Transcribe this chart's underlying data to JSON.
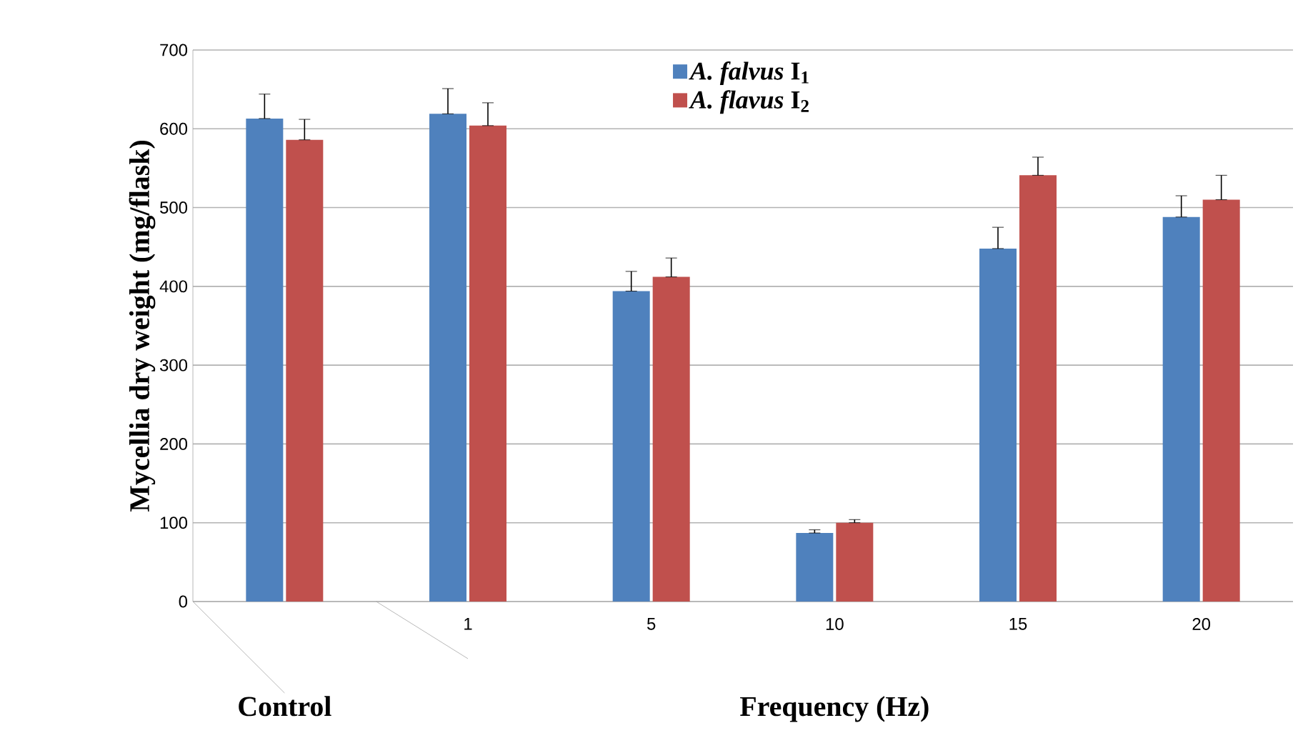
{
  "chart_data": {
    "type": "bar",
    "xlabel": "Frequency (Hz)",
    "ylabel": "Mycellia dry weight (mg/flask)",
    "categories": [
      null,
      "1",
      "5",
      "10",
      "15",
      "20"
    ],
    "annotations": [
      "Control"
    ],
    "series": [
      {
        "name": "*A. falvus* I$_{1}$",
        "color": "#4f81bd",
        "values": [
          613,
          619,
          394,
          87,
          448,
          488
        ],
        "errors": [
          [
            613,
            644
          ],
          [
            619,
            651
          ],
          [
            394,
            419
          ],
          [
            87,
            91
          ],
          [
            448,
            475
          ],
          [
            488,
            515
          ]
        ]
      },
      {
        "name": "*A. flavus* I$_{2}$",
        "color": "#c0504d",
        "values": [
          586,
          604,
          412,
          100,
          541,
          510
        ],
        "errors": [
          [
            586,
            612
          ],
          [
            604,
            633
          ],
          [
            412,
            436
          ],
          [
            100,
            104
          ],
          [
            541,
            564
          ],
          [
            510,
            541
          ]
        ]
      }
    ],
    "ylim": [
      0,
      700
    ],
    "yticks": [
      0,
      100,
      200,
      300,
      400,
      500,
      600,
      700
    ],
    "grid": "y",
    "legend": "top"
  }
}
